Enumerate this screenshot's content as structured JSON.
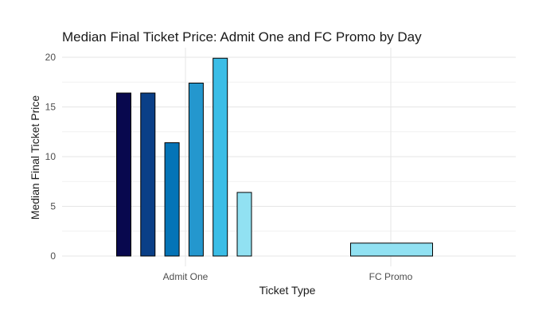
{
  "chart_data": {
    "type": "bar",
    "title": "Median Final Ticket Price: Admit One and FC Promo by Day",
    "xlabel": "Ticket Type",
    "ylabel": "Median Final Ticket Price",
    "categories": [
      "Admit One",
      "FC Promo"
    ],
    "yticks": [
      "0",
      "5",
      "10",
      "15",
      "20"
    ],
    "ylim": [
      -1,
      20.5
    ],
    "grid": true,
    "legend": "none",
    "bar_colors": [
      "#08084E",
      "#0A3F87",
      "#0474B7",
      "#2497CE",
      "#3BBDE6",
      "#91E1F2"
    ],
    "groups": [
      {
        "category": "Admit One",
        "values": [
          16.4,
          16.4,
          11.4,
          17.4,
          19.9,
          6.4
        ]
      },
      {
        "category": "FC Promo",
        "values": [
          1.3
        ],
        "color": "#91E1F2"
      }
    ]
  }
}
